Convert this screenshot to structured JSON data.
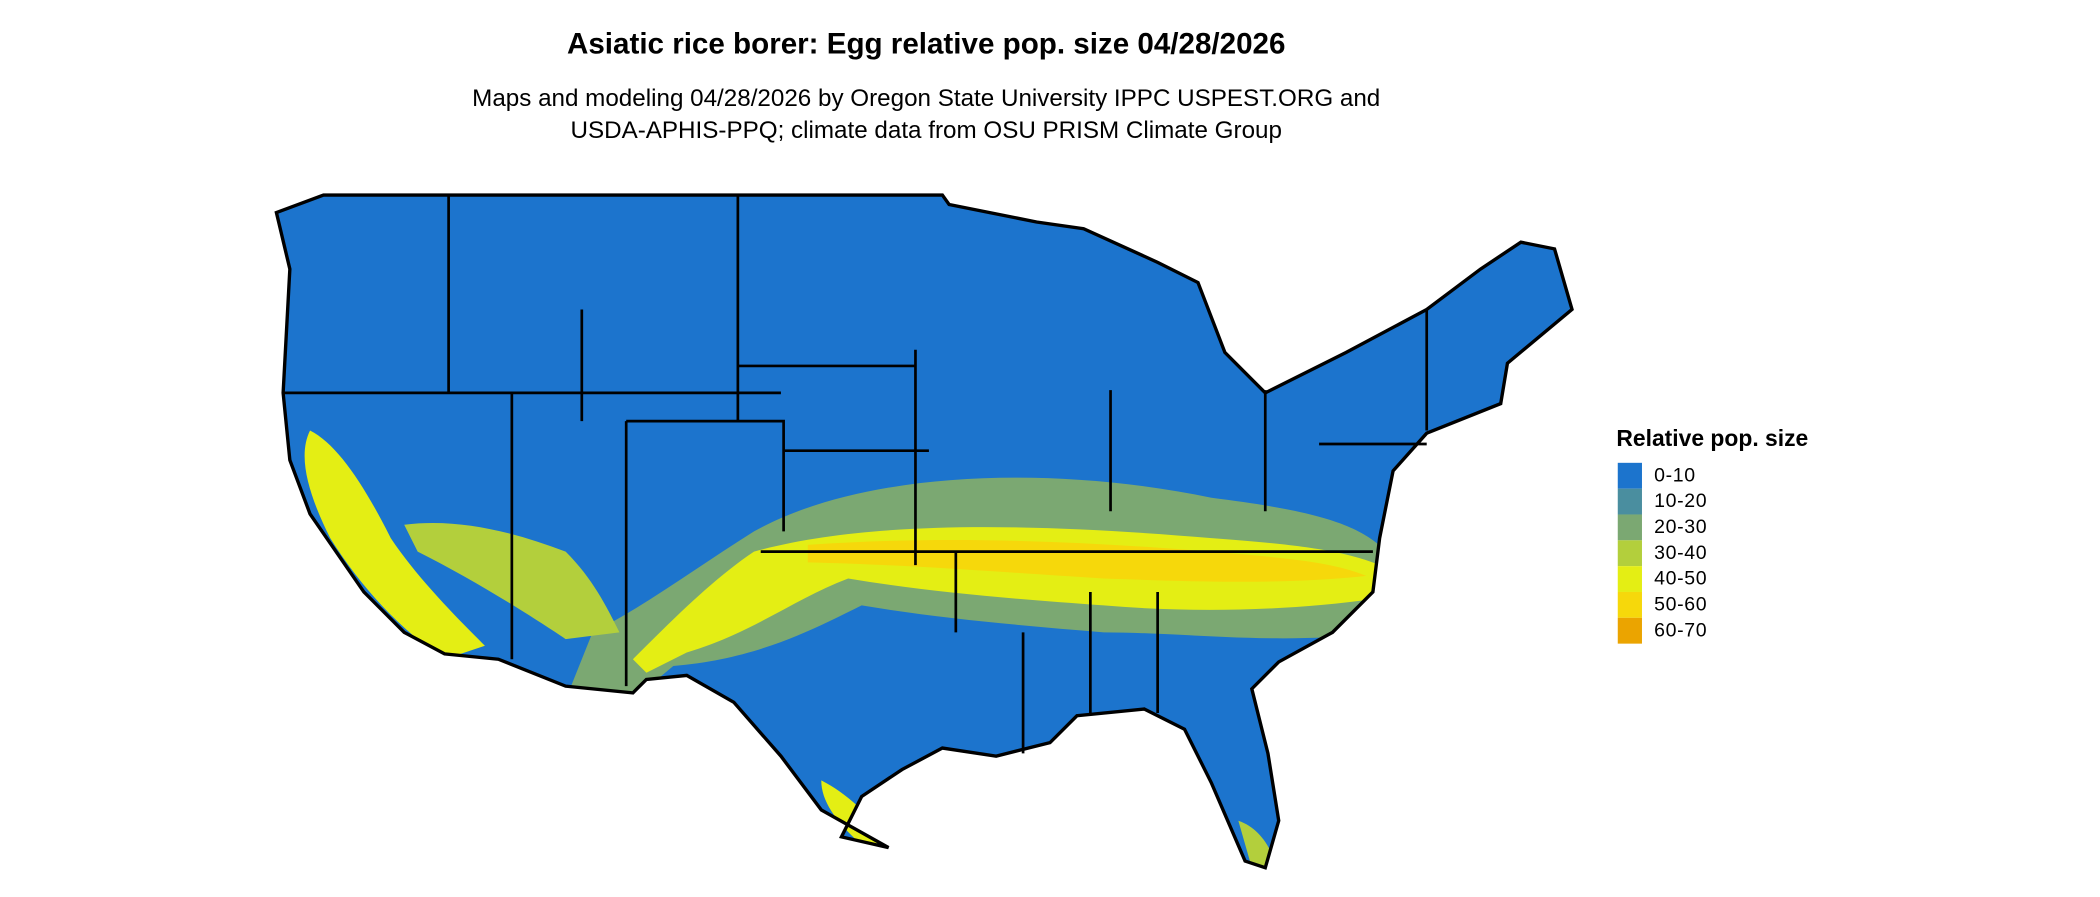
{
  "header": {
    "title": "Asiatic rice borer: Egg relative pop. size 04/28/2026",
    "subtitle": [
      "Maps and modeling 04/28/2026 by Oregon State University IPPC USPEST.ORG and",
      "USDA-APHIS-PPQ; climate data from OSU PRISM Climate Group"
    ]
  },
  "legend": {
    "title": "Relative pop. size",
    "items": [
      {
        "label": "0-10",
        "color": "#1c74cd"
      },
      {
        "label": "10-20",
        "color": "#4a8e9f"
      },
      {
        "label": "20-30",
        "color": "#7ba872"
      },
      {
        "label": "30-40",
        "color": "#b3cf3c"
      },
      {
        "label": "40-50",
        "color": "#e4ee14"
      },
      {
        "label": "50-60",
        "color": "#f6d80b"
      },
      {
        "label": "60-70",
        "color": "#eba400"
      }
    ]
  }
}
